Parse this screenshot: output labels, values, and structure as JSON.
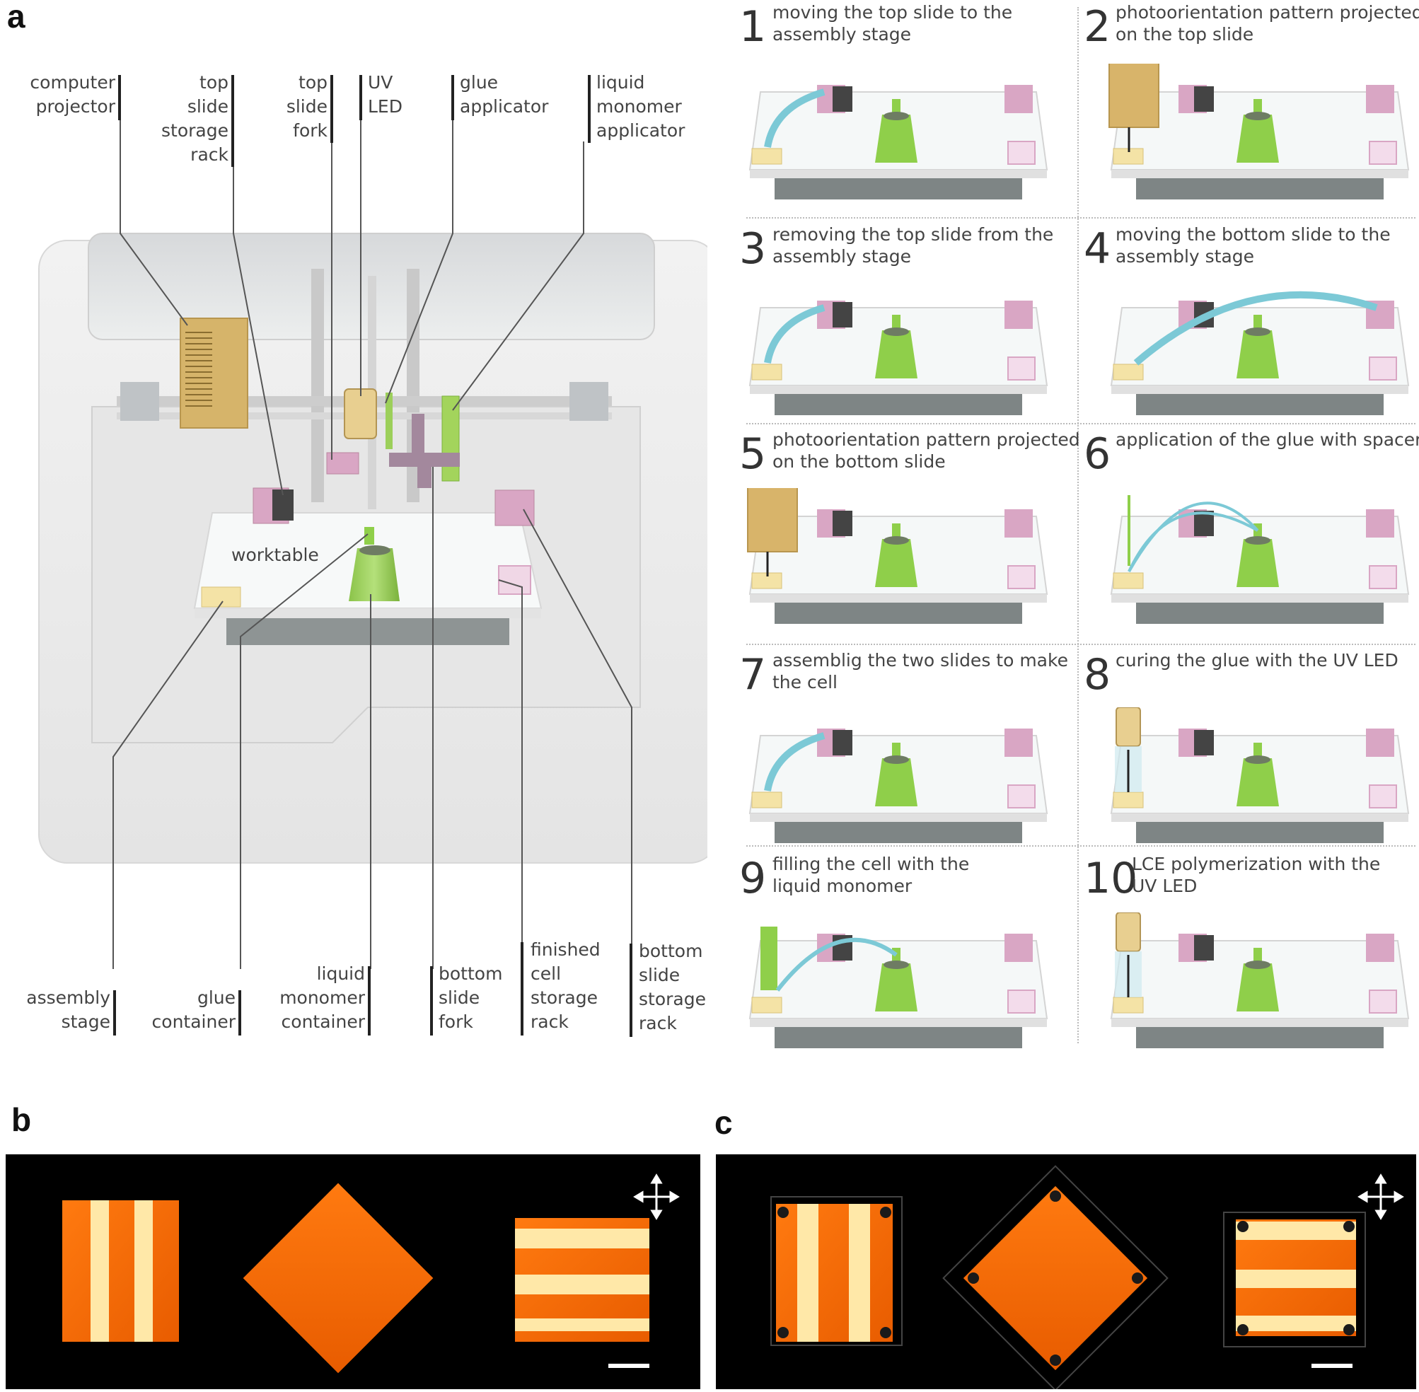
{
  "panels": {
    "a": "a",
    "b": "b",
    "c": "c"
  },
  "worktable_label": "worktable",
  "top_callouts": [
    {
      "lines": [
        "computer",
        "projector"
      ]
    },
    {
      "lines": [
        "top",
        "slide",
        "storage",
        "rack"
      ]
    },
    {
      "lines": [
        "top",
        "slide",
        "fork"
      ]
    },
    {
      "lines": [
        "UV",
        "LED"
      ]
    },
    {
      "lines": [
        "glue",
        "applicator"
      ]
    },
    {
      "lines": [
        "liquid",
        "monomer",
        "applicator"
      ]
    }
  ],
  "bottom_callouts": [
    {
      "lines": [
        "assembly",
        "stage"
      ]
    },
    {
      "lines": [
        "glue",
        "container"
      ]
    },
    {
      "lines": [
        "liquid",
        "monomer",
        "container"
      ]
    },
    {
      "lines": [
        "bottom",
        "slide",
        "fork"
      ]
    },
    {
      "lines": [
        "finished",
        "cell",
        "storage",
        "rack"
      ]
    },
    {
      "lines": [
        "bottom",
        "slide",
        "storage",
        "rack"
      ]
    }
  ],
  "steps": [
    {
      "num": "1",
      "lines": [
        "moving the top slide to the",
        "assembly stage"
      ]
    },
    {
      "num": "2",
      "lines": [
        "photoorientation pattern projected",
        "on the top slide"
      ]
    },
    {
      "num": "3",
      "lines": [
        "removing the top slide from the",
        "assembly stage"
      ]
    },
    {
      "num": "4",
      "lines": [
        "moving the bottom slide to the",
        "assembly stage"
      ]
    },
    {
      "num": "5",
      "lines": [
        "photoorientation pattern projected",
        "on the bottom slide"
      ]
    },
    {
      "num": "6",
      "lines": [
        "application of the glue with spacers"
      ]
    },
    {
      "num": "7",
      "lines": [
        "assemblig the two slides to make",
        "the cell"
      ]
    },
    {
      "num": "8",
      "lines": [
        "curing the glue with the UV LED"
      ]
    },
    {
      "num": "9",
      "lines": [
        "filling the cell with the",
        "liquid monomer"
      ]
    },
    {
      "num": "10",
      "lines": [
        "LCE polymerization with the",
        "UV LED"
      ]
    }
  ],
  "colors": {
    "green": "#8fcf4a",
    "pink": "#d9a6c4",
    "gold": "#d8b46a",
    "arrow": "#7cc9d6",
    "orange": "#ff8a1a"
  }
}
